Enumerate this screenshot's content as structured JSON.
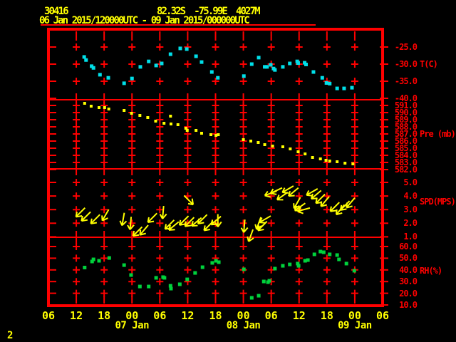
{
  "header": {
    "station_id": "30416",
    "location": "82.32S  -75.99E  4027M",
    "time_range": "06 Jan 2015/120000UTC - 09 Jan 2015/000000UTC"
  },
  "footer": {
    "page_indicator": "2"
  },
  "colors": {
    "background": "#000000",
    "grid": "#ff0000",
    "label_yellow": "#ffff00",
    "temperature": "#00dfe8",
    "pressure": "#ffff00",
    "wind": "#ffff00",
    "humidity": "#00d23c"
  },
  "chart_data": {
    "type": "scatter",
    "x_axis": {
      "hours_per_tick": 6,
      "hour_ticks": [
        "06",
        "12",
        "18",
        "00",
        "06",
        "12",
        "18",
        "00",
        "06",
        "12",
        "18",
        "00",
        "06"
      ],
      "date_labels": [
        {
          "label": "07 Jan",
          "tick": 3
        },
        {
          "label": "08 Jan",
          "tick": 7
        },
        {
          "label": "09 Jan",
          "tick": 11
        }
      ]
    },
    "panels": [
      {
        "name": "temperature",
        "unit_label": "T(C)",
        "marker": "square",
        "tick_labels": [
          "-25.0",
          "-30.0",
          "-35.0",
          "-40.0"
        ],
        "points": [
          [
            7.7,
            -27.9
          ],
          [
            8.1,
            -28.8
          ],
          [
            9.3,
            -30.6
          ],
          [
            9.7,
            -31.1
          ],
          [
            11.1,
            -33.1
          ],
          [
            12.9,
            -34.0
          ],
          [
            16.3,
            -35.6
          ],
          [
            18.0,
            -34.2
          ],
          [
            19.8,
            -30.8
          ],
          [
            21.6,
            -29.2
          ],
          [
            23.2,
            -30.4
          ],
          [
            24.4,
            -29.8
          ],
          [
            26.3,
            -27.1
          ],
          [
            28.4,
            -25.4
          ],
          [
            29.8,
            -25.6
          ],
          [
            31.8,
            -27.7
          ],
          [
            33.0,
            -29.4
          ],
          [
            35.2,
            -32.3
          ],
          [
            36.5,
            -34.0
          ],
          [
            42.1,
            -33.5
          ],
          [
            43.8,
            -30.0
          ],
          [
            45.3,
            -28.1
          ],
          [
            46.6,
            -30.8
          ],
          [
            47.1,
            -30.8
          ],
          [
            47.9,
            -30.2
          ],
          [
            48.5,
            -31.3
          ],
          [
            48.8,
            -31.7
          ],
          [
            50.5,
            -30.8
          ],
          [
            52.0,
            -29.8
          ],
          [
            53.6,
            -29.2
          ],
          [
            53.8,
            -29.7
          ],
          [
            55.2,
            -29.6
          ],
          [
            55.5,
            -30.1
          ],
          [
            57.1,
            -32.3
          ],
          [
            59.0,
            -34.0
          ],
          [
            59.9,
            -35.5
          ],
          [
            60.6,
            -35.7
          ],
          [
            62.2,
            -37.1
          ],
          [
            63.7,
            -37.1
          ],
          [
            65.4,
            -36.9
          ]
        ]
      },
      {
        "name": "pressure",
        "unit_label": "Pre (mb)",
        "marker": "square",
        "tick_labels": [
          "591.0",
          "590.0",
          "589.0",
          "588.0",
          "587.0",
          "586.0",
          "585.0",
          "584.0",
          "583.0",
          "582.0"
        ],
        "points": [
          [
            7.8,
            591.3
          ],
          [
            9.2,
            590.9
          ],
          [
            10.9,
            590.7
          ],
          [
            12.1,
            590.7
          ],
          [
            13.0,
            590.5
          ],
          [
            16.3,
            590.3
          ],
          [
            17.9,
            589.9
          ],
          [
            19.7,
            589.6
          ],
          [
            21.4,
            589.3
          ],
          [
            23.1,
            588.8
          ],
          [
            24.9,
            588.5
          ],
          [
            26.3,
            589.5
          ],
          [
            26.4,
            588.4
          ],
          [
            27.9,
            588.3
          ],
          [
            29.6,
            587.8
          ],
          [
            29.9,
            587.5
          ],
          [
            31.8,
            587.5
          ],
          [
            33.0,
            587.1
          ],
          [
            35.0,
            586.9
          ],
          [
            36.1,
            586.8
          ],
          [
            36.6,
            586.9
          ],
          [
            42.0,
            586.2
          ],
          [
            43.6,
            586.0
          ],
          [
            45.2,
            585.8
          ],
          [
            46.6,
            585.5
          ],
          [
            48.3,
            585.3
          ],
          [
            50.5,
            585.2
          ],
          [
            52.1,
            584.9
          ],
          [
            53.8,
            584.5
          ],
          [
            55.3,
            584.2
          ],
          [
            56.9,
            583.7
          ],
          [
            58.6,
            583.5
          ],
          [
            59.8,
            583.3
          ],
          [
            60.6,
            583.2
          ],
          [
            62.2,
            583.1
          ],
          [
            63.9,
            582.9
          ],
          [
            65.6,
            582.8
          ]
        ]
      },
      {
        "name": "wind_speed",
        "unit_label": "SPD(MPS)",
        "marker": "arrow",
        "tick_labels": [
          "5.0",
          "4.0",
          "3.0",
          "2.0",
          "1.0"
        ],
        "arrows": [
          [
            6.9,
            2.8,
            135
          ],
          [
            8.1,
            2.5,
            135
          ],
          [
            10.1,
            2.3,
            135
          ],
          [
            12.3,
            2.6,
            120
          ],
          [
            16.1,
            2.3,
            100
          ],
          [
            17.7,
            2.0,
            95
          ],
          [
            19.2,
            1.4,
            135
          ],
          [
            20.6,
            1.5,
            130
          ],
          [
            22.4,
            2.4,
            135
          ],
          [
            24.7,
            2.8,
            95
          ],
          [
            26.1,
            1.9,
            135
          ],
          [
            27.0,
            1.8,
            140
          ],
          [
            29.2,
            2.2,
            135
          ],
          [
            30.2,
            3.7,
            45
          ],
          [
            30.4,
            2.1,
            135
          ],
          [
            31.9,
            2.1,
            140
          ],
          [
            33.2,
            2.3,
            135
          ],
          [
            34.5,
            1.8,
            135
          ],
          [
            36.1,
            2.2,
            140
          ],
          [
            36.5,
            2.2,
            90
          ],
          [
            42.2,
            1.8,
            95
          ],
          [
            43.6,
            1.1,
            110
          ],
          [
            45.3,
            2.0,
            110
          ],
          [
            46.1,
            1.8,
            135
          ],
          [
            46.7,
            2.3,
            150
          ],
          [
            47.9,
            4.2,
            160
          ],
          [
            49.1,
            4.4,
            155
          ],
          [
            50.4,
            4.0,
            145
          ],
          [
            51.6,
            4.5,
            150
          ],
          [
            52.8,
            4.3,
            140
          ],
          [
            53.6,
            3.5,
            120
          ],
          [
            54.2,
            3.2,
            145
          ],
          [
            55.0,
            3.0,
            165
          ],
          [
            56.8,
            4.3,
            150
          ],
          [
            57.7,
            4.1,
            140
          ],
          [
            58.6,
            3.8,
            135
          ],
          [
            59.6,
            3.6,
            130
          ],
          [
            61.7,
            3.2,
            135
          ],
          [
            62.9,
            3.0,
            130
          ],
          [
            63.9,
            3.3,
            135
          ],
          [
            65.1,
            3.5,
            130
          ]
        ]
      },
      {
        "name": "humidity",
        "unit_label": "RH(%)",
        "marker": "square",
        "tick_labels": [
          "60.0",
          "50.0",
          "40.0",
          "30.0",
          "20.0",
          "10.0"
        ],
        "points": [
          [
            7.8,
            42.0
          ],
          [
            9.4,
            47.2
          ],
          [
            9.7,
            49.0
          ],
          [
            10.9,
            47.8
          ],
          [
            13.1,
            50.2
          ],
          [
            16.3,
            44.1
          ],
          [
            17.8,
            35.6
          ],
          [
            19.7,
            25.8
          ],
          [
            21.6,
            25.8
          ],
          [
            23.2,
            33.2
          ],
          [
            24.7,
            33.8
          ],
          [
            25.0,
            33.2
          ],
          [
            26.3,
            26.4
          ],
          [
            26.4,
            24.0
          ],
          [
            28.3,
            27.7
          ],
          [
            29.9,
            31.9
          ],
          [
            31.6,
            37.4
          ],
          [
            33.2,
            42.3
          ],
          [
            35.3,
            46.0
          ],
          [
            36.1,
            47.8
          ],
          [
            36.7,
            46.6
          ],
          [
            42.1,
            40.5
          ],
          [
            43.8,
            16.1
          ],
          [
            45.3,
            17.9
          ],
          [
            46.4,
            30.1
          ],
          [
            47.3,
            29.5
          ],
          [
            47.6,
            30.7
          ],
          [
            48.8,
            41.1
          ],
          [
            50.5,
            43.5
          ],
          [
            52.0,
            44.7
          ],
          [
            53.7,
            45.4
          ],
          [
            53.9,
            43.5
          ],
          [
            55.3,
            47.8
          ],
          [
            55.9,
            48.4
          ],
          [
            57.3,
            53.3
          ],
          [
            58.6,
            55.7
          ],
          [
            59.3,
            55.1
          ],
          [
            60.6,
            53.3
          ],
          [
            62.2,
            52.7
          ],
          [
            62.6,
            49.0
          ],
          [
            64.2,
            45.4
          ],
          [
            65.9,
            39.3
          ]
        ]
      }
    ]
  }
}
